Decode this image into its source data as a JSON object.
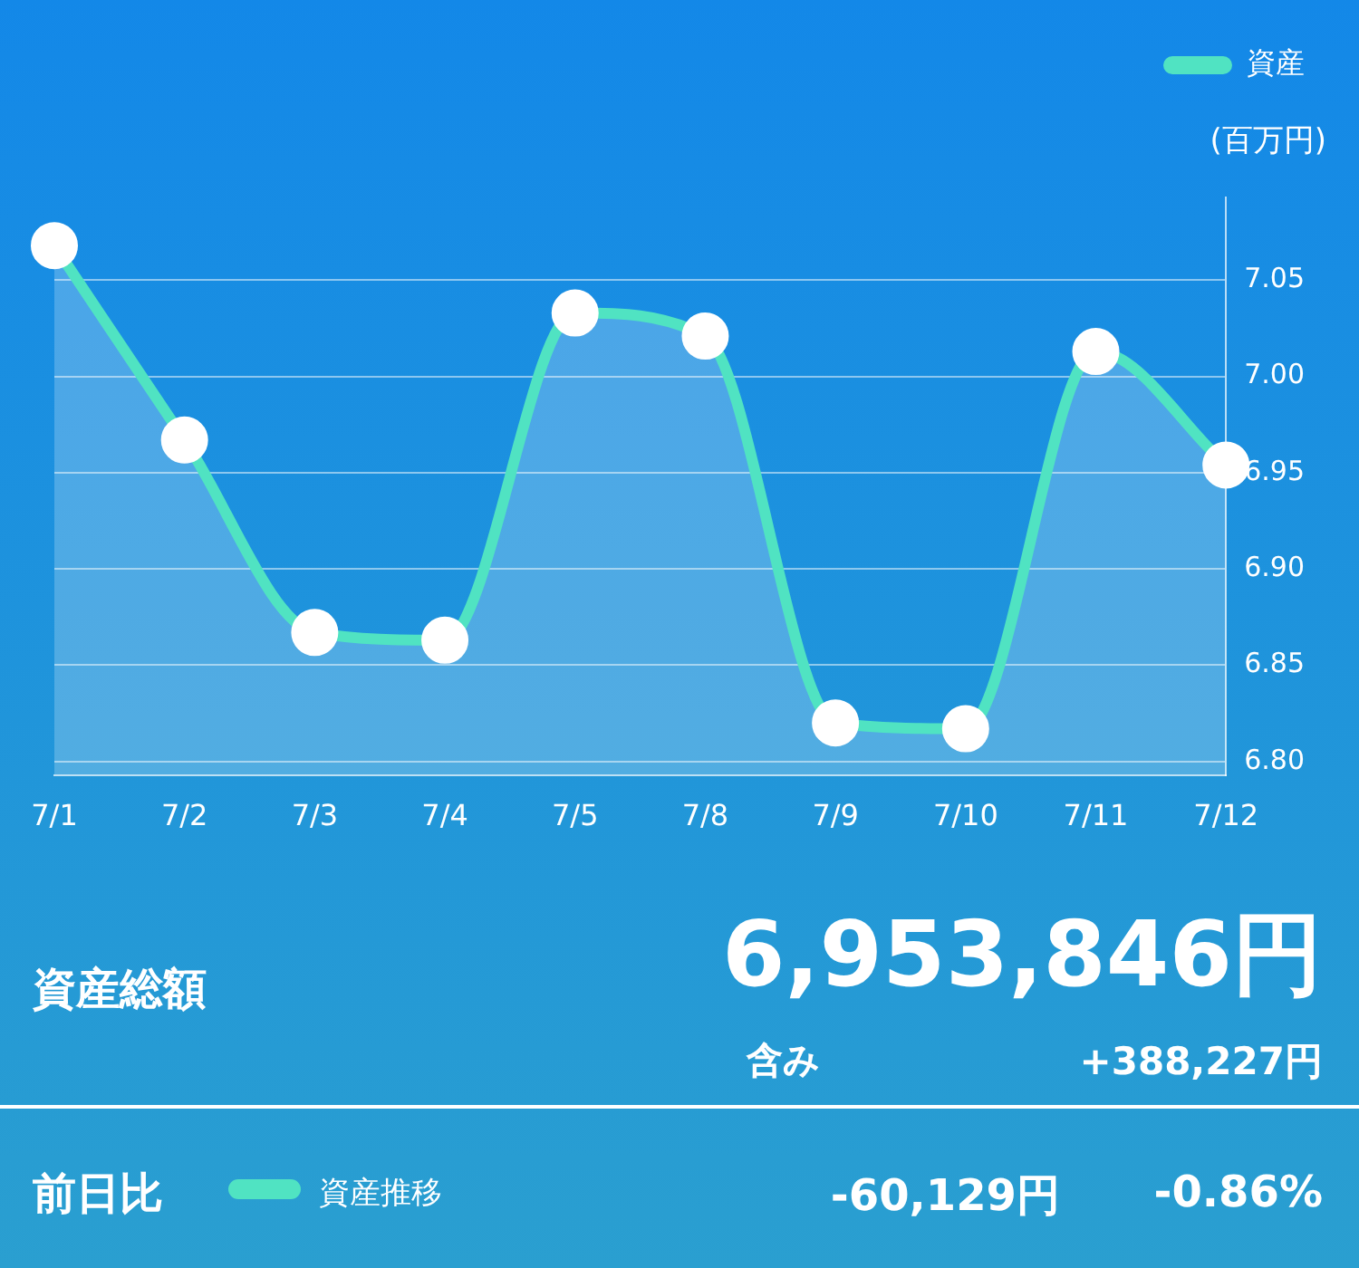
{
  "chart_data": {
    "type": "area",
    "categories": [
      "7/1",
      "7/2",
      "7/3",
      "7/4",
      "7/5",
      "7/8",
      "7/9",
      "7/10",
      "7/11",
      "7/12"
    ],
    "series": [
      {
        "name": "資産",
        "color": "#50e3c2",
        "values": [
          7.068,
          6.967,
          6.867,
          6.863,
          7.033,
          7.021,
          6.82,
          6.817,
          7.013,
          6.954
        ]
      }
    ],
    "ylabel": "(百万円)",
    "ylim": [
      6.793,
      7.093
    ],
    "yticks": [
      {
        "value": 6.8,
        "label": "6.80"
      },
      6.85,
      {
        "value": 6.9,
        "label": "6.90"
      },
      6.95,
      {
        "value": 7.0,
        "label": "7.00"
      },
      7.05
    ],
    "grid": "y",
    "legend": "top right",
    "marker": "circle",
    "line_style": "solid",
    "annotations": [
      "資産総額",
      "6,953,846円",
      "含み",
      "+388,227円",
      "前日比",
      "資産推移",
      "-60,129円",
      "-0.86%"
    ]
  }
}
